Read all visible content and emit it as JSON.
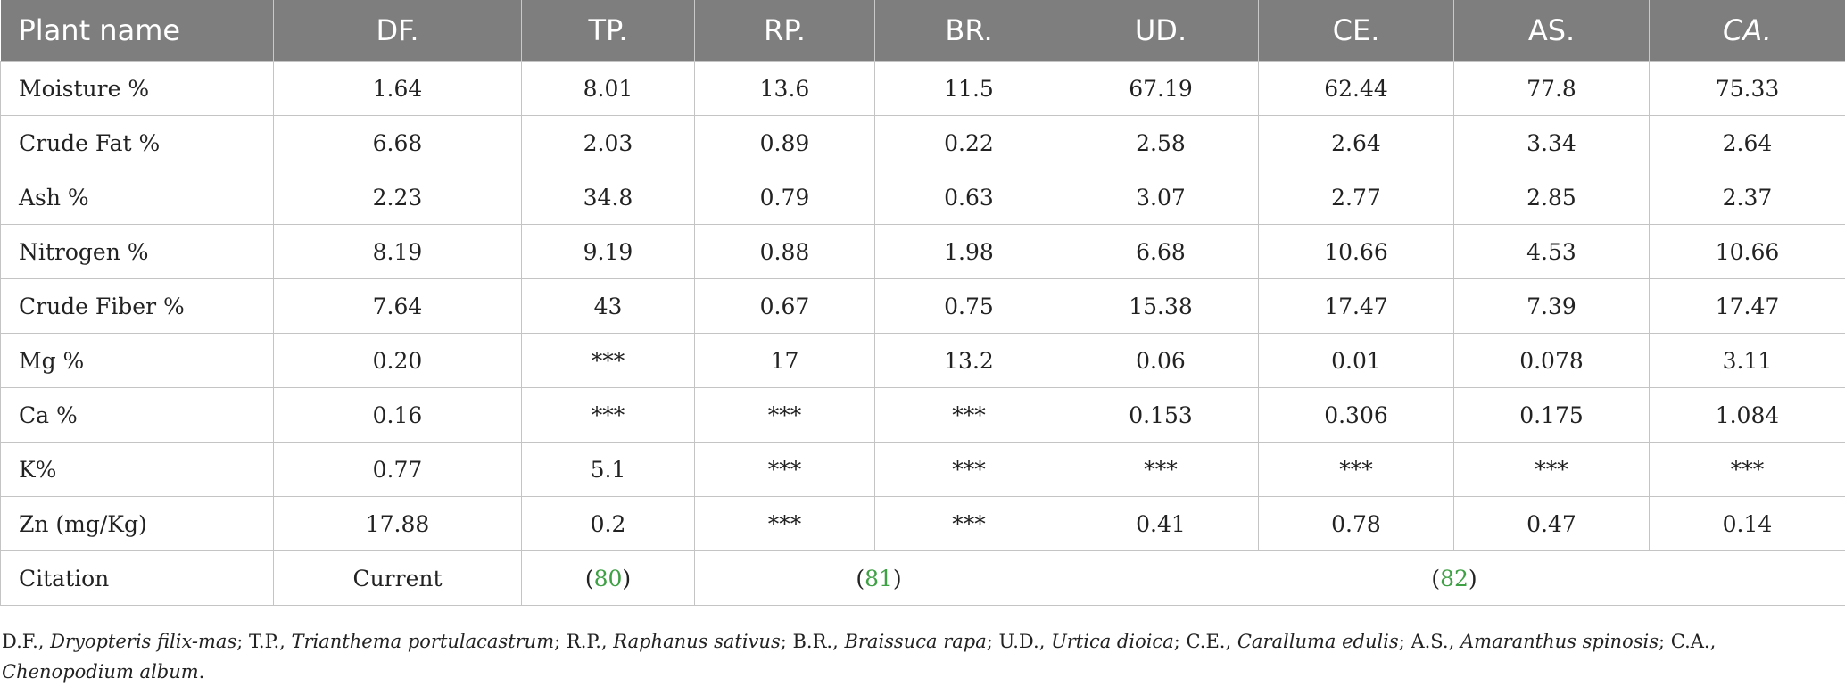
{
  "table": {
    "headers": [
      "Plant name",
      "DF.",
      "TP.",
      "RP.",
      "BR.",
      "UD.",
      "CE.",
      "AS.",
      "CA."
    ],
    "rows": [
      [
        "Moisture %",
        "1.64",
        "8.01",
        "13.6",
        "11.5",
        "67.19",
        "62.44",
        "77.8",
        "75.33"
      ],
      [
        "Crude Fat %",
        "6.68",
        "2.03",
        "0.89",
        "0.22",
        "2.58",
        "2.64",
        "3.34",
        "2.64"
      ],
      [
        "Ash %",
        "2.23",
        "34.8",
        "0.79",
        "0.63",
        "3.07",
        "2.77",
        "2.85",
        "2.37"
      ],
      [
        "Nitrogen %",
        "8.19",
        "9.19",
        "0.88",
        "1.98",
        "6.68",
        "10.66",
        "4.53",
        "10.66"
      ],
      [
        "Crude Fiber %",
        "7.64",
        "43",
        "0.67",
        "0.75",
        "15.38",
        "17.47",
        "7.39",
        "17.47"
      ],
      [
        "Mg %",
        "0.20",
        "***",
        "17",
        "13.2",
        "0.06",
        "0.01",
        "0.078",
        "3.11"
      ],
      [
        "Ca %",
        "0.16",
        "***",
        "***",
        "***",
        "0.153",
        "0.306",
        "0.175",
        "1.084"
      ],
      [
        "K%",
        "0.77",
        "5.1",
        "***",
        "***",
        "***",
        "***",
        "***",
        "***"
      ],
      [
        "Zn (mg/Kg)",
        "17.88",
        "0.2",
        "***",
        "***",
        "0.41",
        "0.78",
        "0.47",
        "0.14"
      ]
    ],
    "citation_row": {
      "label": "Citation",
      "current": "Current",
      "refs": [
        "80",
        "81",
        "82"
      ]
    },
    "reference_color": "#3fa045",
    "header_color": "#7d7e7d"
  },
  "footnote": {
    "items": [
      {
        "abbr": "D.F.,",
        "name": "Dryopteris filix-mas"
      },
      {
        "abbr": "T.P.,",
        "name": "Trianthema portulacastrum"
      },
      {
        "abbr": "R.P.,",
        "name": "Raphanus sativus"
      },
      {
        "abbr": "B.R.,",
        "name": "Braissuca rapa"
      },
      {
        "abbr": "U.D.,",
        "name": "Urtica dioica"
      },
      {
        "abbr": "C.E.,",
        "name": "Caralluma edulis"
      },
      {
        "abbr": "A.S.,",
        "name": "Amaranthus spinosis"
      },
      {
        "abbr": "C.A.,",
        "name": "Chenopodium album"
      }
    ]
  }
}
